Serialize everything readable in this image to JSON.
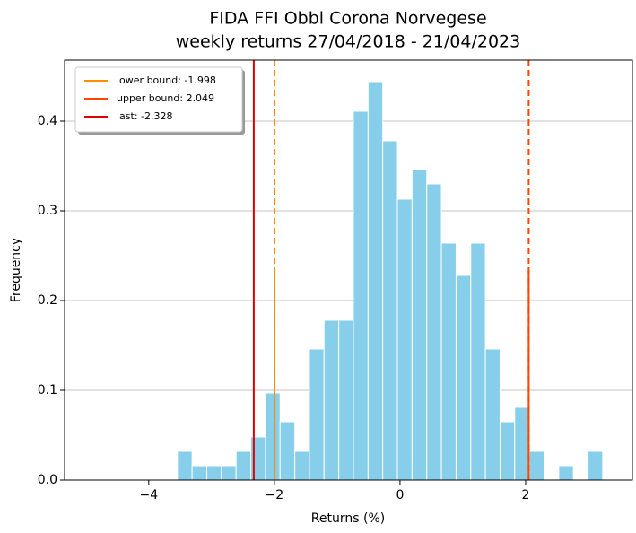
{
  "chart_data": {
    "type": "histogram",
    "title": [
      "FIDA FFI Obbl Corona Norvegese",
      "weekly returns 27/04/2018 - 21/04/2023"
    ],
    "xlabel": "Returns (%)",
    "ylabel": "Frequency",
    "bins": [
      -3.543,
      -3.31,
      -3.076,
      -2.843,
      -2.609,
      -2.376,
      -2.142,
      -1.909,
      -1.675,
      -1.442,
      -1.209,
      -0.975,
      -0.742,
      -0.508,
      -0.275,
      -0.041,
      0.192,
      0.426,
      0.659,
      0.893,
      1.126,
      1.359,
      1.593,
      1.826,
      2.06,
      2.293,
      2.527,
      2.76,
      2.994,
      3.227
    ],
    "values": [
      0.032,
      0.016,
      0.016,
      0.016,
      0.032,
      0.048,
      0.097,
      0.065,
      0.032,
      0.146,
      0.178,
      0.178,
      0.411,
      0.444,
      0.378,
      0.313,
      0.346,
      0.33,
      0.264,
      0.228,
      0.264,
      0.146,
      0.065,
      0.081,
      0.032,
      0,
      0.016,
      0,
      0.032
    ],
    "color": "#87ceeb",
    "lines": [
      {
        "label": "lower bound: -1.998",
        "value": -1.998,
        "color": "#ff8c00",
        "dashed": true
      },
      {
        "label": "upper bound: 2.049",
        "value": 2.049,
        "color": "#ff4500",
        "dashed": true
      },
      {
        "label": "last: -2.328",
        "value": -2.328,
        "color": "#e00000",
        "dashed": false
      }
    ],
    "xlim": [
      -5.34,
      3.7
    ],
    "ylim": [
      0,
      0.468
    ],
    "xticks": [
      {
        "value": -4,
        "label": "−4"
      },
      {
        "value": -2,
        "label": "−2"
      },
      0,
      2
    ],
    "yticks": [
      {
        "value": 0,
        "label": "0.0"
      },
      0.1,
      0.2,
      0.3,
      0.4
    ],
    "grid": "y",
    "legend": "upper left"
  }
}
